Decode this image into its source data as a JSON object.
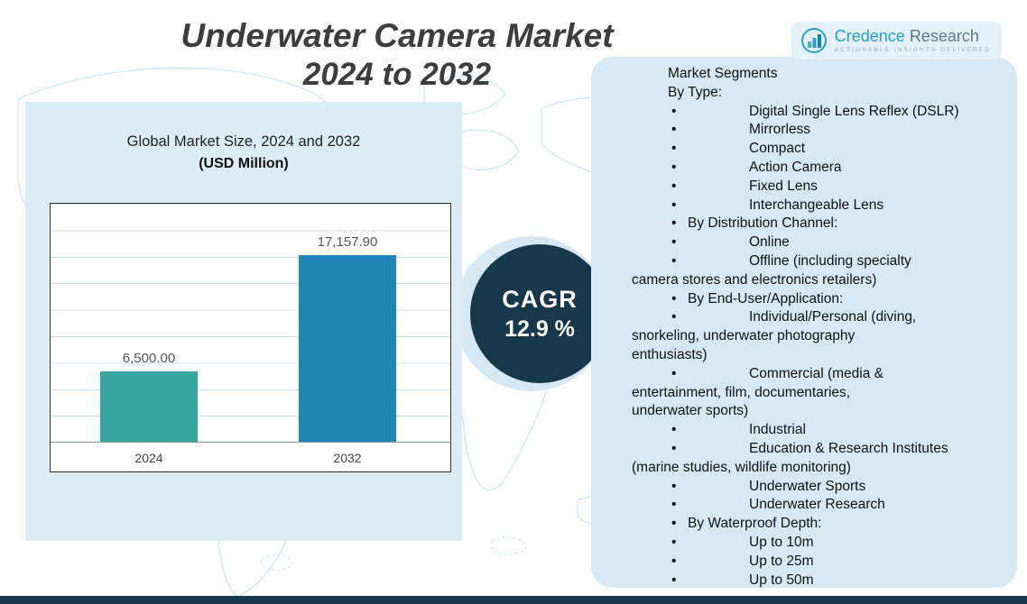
{
  "title": {
    "line1": "Underwater Camera Market",
    "line2": "2024 to 2032"
  },
  "logo": {
    "name_primary": "Credence",
    "name_secondary": " Research",
    "tagline": "Actionable Insights Delivered"
  },
  "chart_panel": {
    "title": "Global Market Size, 2024 and 2032",
    "subtitle": "(USD Million)"
  },
  "chart_data": {
    "type": "bar",
    "title": "Global Market Size, 2024 and 2032",
    "ylabel": "USD Million",
    "categories": [
      "2024",
      "2032"
    ],
    "values": [
      6500.0,
      17157.9
    ],
    "value_labels": [
      "6,500.00",
      "17,157.90"
    ],
    "ylim": [
      0,
      22000
    ],
    "grid": true,
    "legend": "none",
    "bar_colors": [
      "#38a7a0",
      "#1f86b5"
    ]
  },
  "cagr": {
    "label": "CAGR",
    "value": "12.9 %",
    "badge_color": "#17384a"
  },
  "segments": {
    "lines": [
      {
        "k": "plain",
        "t": "Market Segments"
      },
      {
        "k": "plain",
        "t": "By Type:"
      },
      {
        "k": "item",
        "t": "Digital Single Lens Reflex (DSLR)"
      },
      {
        "k": "item",
        "t": "Mirrorless"
      },
      {
        "k": "item",
        "t": "Compact"
      },
      {
        "k": "item",
        "t": "Action Camera"
      },
      {
        "k": "item",
        "t": "Fixed Lens"
      },
      {
        "k": "item",
        "t": "Interchangeable Lens"
      },
      {
        "k": "cat",
        "t": "By Distribution Channel:"
      },
      {
        "k": "item",
        "t": "Online"
      },
      {
        "k": "item",
        "t": "Offline (including specialty"
      },
      {
        "k": "cont",
        "t": "camera stores and electronics retailers)"
      },
      {
        "k": "cat",
        "t": "By End-User/Application:"
      },
      {
        "k": "item",
        "t": "Individual/Personal (diving,"
      },
      {
        "k": "cont",
        "t": "snorkeling, underwater photography"
      },
      {
        "k": "cont",
        "t": "enthusiasts)"
      },
      {
        "k": "item",
        "t": "Commercial (media &"
      },
      {
        "k": "cont",
        "t": "entertainment, film, documentaries,"
      },
      {
        "k": "cont",
        "t": "underwater sports)"
      },
      {
        "k": "item",
        "t": "Industrial"
      },
      {
        "k": "item",
        "t": "Education & Research Institutes"
      },
      {
        "k": "cont",
        "t": "(marine studies, wildlife monitoring)"
      },
      {
        "k": "item",
        "t": "Underwater Sports"
      },
      {
        "k": "item",
        "t": "Underwater Research"
      },
      {
        "k": "cat",
        "t": "By Waterproof Depth:"
      },
      {
        "k": "item",
        "t": "Up to 10m"
      },
      {
        "k": "item",
        "t": "Up to 25m"
      },
      {
        "k": "item",
        "t": "Up to 50m"
      }
    ]
  }
}
